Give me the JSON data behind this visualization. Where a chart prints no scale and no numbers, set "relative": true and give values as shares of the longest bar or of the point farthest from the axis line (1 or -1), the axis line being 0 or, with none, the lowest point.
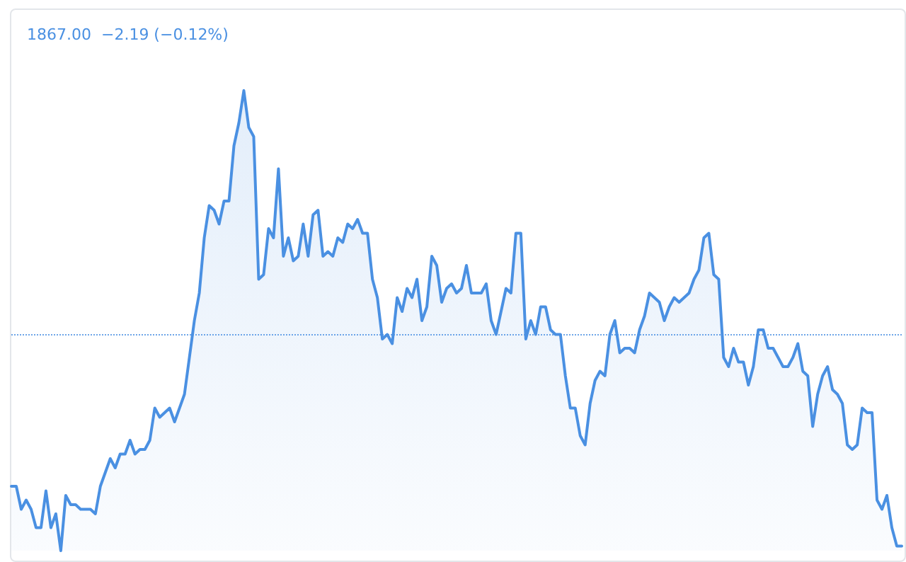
{
  "chart_data": {
    "type": "area",
    "relative": true,
    "annotations": [
      "1867.00  −2.19 (−0.12%)"
    ],
    "categories": [
      null,
      null,
      null,
      null,
      null,
      null,
      null,
      null,
      null,
      null,
      null,
      null,
      null,
      null,
      null,
      null,
      null,
      null,
      null,
      null,
      null,
      null,
      null,
      null,
      null,
      null,
      null,
      null,
      null,
      null,
      null,
      null,
      null,
      null,
      null,
      null,
      null,
      null,
      null,
      null,
      null,
      null,
      null,
      null,
      null,
      null,
      null,
      null,
      null,
      null,
      null,
      null,
      null,
      null,
      null,
      null,
      null,
      null,
      null,
      null,
      null,
      null,
      null,
      null,
      null,
      null,
      null,
      null,
      null,
      null,
      null,
      null,
      null,
      null,
      null,
      null,
      null,
      null,
      null,
      null,
      null,
      null,
      null,
      null,
      null,
      null,
      null,
      null,
      null,
      null,
      null,
      null,
      null,
      null,
      null,
      null,
      null,
      null,
      null,
      null,
      null,
      null,
      null,
      null,
      null,
      null,
      null,
      null,
      null,
      null,
      null,
      null,
      null,
      null,
      null,
      null,
      null,
      null,
      null,
      null,
      null,
      null,
      null,
      null,
      null,
      null,
      null,
      null,
      null,
      null,
      null,
      null,
      null,
      null,
      null,
      null,
      null,
      null,
      null,
      null,
      null,
      null,
      null,
      null,
      null,
      null,
      null,
      null,
      null,
      null,
      null,
      null,
      null,
      null,
      null,
      null,
      null,
      null,
      null,
      null,
      null,
      null,
      null,
      null,
      null,
      null,
      null,
      null,
      null,
      null,
      null,
      null,
      null,
      null,
      null,
      null,
      null,
      null,
      null,
      null,
      null
    ],
    "series": [
      {
        "color": "#4a90e2",
        "values": [
          0.14,
          0.14,
          0.09,
          0.11,
          0.09,
          0.05,
          0.05,
          0.13,
          0.05,
          0.08,
          0,
          0.12,
          0.1,
          0.1,
          0.09,
          0.09,
          0.09,
          0.08,
          0.14,
          0.17,
          0.2,
          0.18,
          0.21,
          0.21,
          0.24,
          0.21,
          0.22,
          0.22,
          0.24,
          0.31,
          0.29,
          0.3,
          0.31,
          0.28,
          0.31,
          0.34,
          0.42,
          0.5,
          0.56,
          0.68,
          0.75,
          0.74,
          0.71,
          0.76,
          0.76,
          0.88,
          0.93,
          1,
          0.92,
          0.9,
          0.59,
          0.6,
          0.7,
          0.68,
          0.83,
          0.64,
          0.68,
          0.63,
          0.64,
          0.71,
          0.64,
          0.73,
          0.74,
          0.64,
          0.65,
          0.64,
          0.68,
          0.67,
          0.71,
          0.7,
          0.72,
          0.69,
          0.69,
          0.59,
          0.55,
          0.46,
          0.47,
          0.45,
          0.55,
          0.52,
          0.57,
          0.55,
          0.59,
          0.5,
          0.53,
          0.64,
          0.62,
          0.54,
          0.57,
          0.58,
          0.56,
          0.57,
          0.62,
          0.56,
          0.56,
          0.56,
          0.58,
          0.5,
          0.47,
          0.52,
          0.57,
          0.56,
          0.69,
          0.69,
          0.46,
          0.5,
          0.47,
          0.53,
          0.53,
          0.48,
          0.47,
          0.47,
          0.38,
          0.31,
          0.31,
          0.25,
          0.23,
          0.32,
          0.37,
          0.39,
          0.38,
          0.47,
          0.5,
          0.43,
          0.44,
          0.44,
          0.43,
          0.48,
          0.51,
          0.56,
          0.55,
          0.54,
          0.5,
          0.53,
          0.55,
          0.54,
          0.55,
          0.56,
          0.59,
          0.61,
          0.68,
          0.69,
          0.6,
          0.59,
          0.42,
          0.4,
          0.44,
          0.41,
          0.41,
          0.36,
          0.4,
          0.48,
          0.48,
          0.44,
          0.44,
          0.42,
          0.4,
          0.4,
          0.42,
          0.45,
          0.39,
          0.38,
          0.27,
          0.34,
          0.38,
          0.4,
          0.35,
          0.34,
          0.32,
          0.23,
          0.22,
          0.23,
          0.31,
          0.3,
          0.3,
          0.11,
          0.09,
          0.12,
          0.05,
          0.01,
          0.01
        ]
      }
    ],
    "ref_lines": [
      {
        "axis": "y",
        "value": 0.47,
        "color": "#4a90e2",
        "line_style": "dotted"
      }
    ]
  }
}
